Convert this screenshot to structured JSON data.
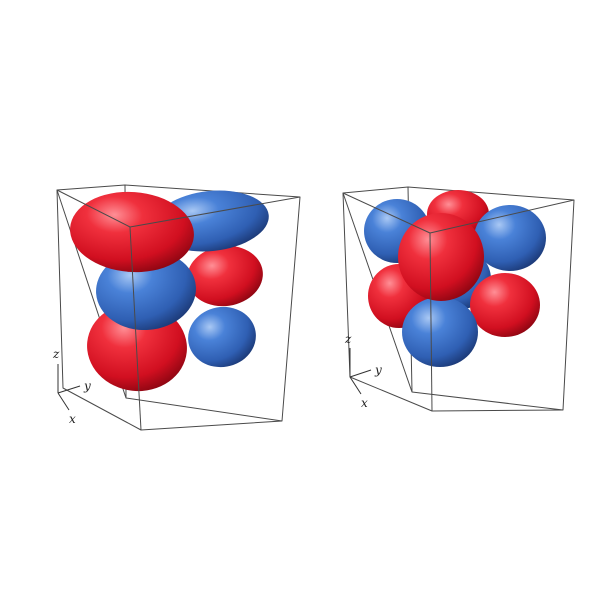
{
  "figure": {
    "panels": [
      {
        "id": "left",
        "axes": {
          "z": "z",
          "y": "y",
          "x": "x"
        },
        "lobes": [
          {
            "phase": "positive"
          },
          {
            "phase": "negative"
          },
          {
            "phase": "negative"
          },
          {
            "phase": "positive"
          },
          {
            "phase": "negative"
          },
          {
            "phase": "positive"
          }
        ]
      },
      {
        "id": "right",
        "axes": {
          "z": "z",
          "y": "y",
          "x": "x"
        },
        "lobes": [
          {
            "phase": "negative"
          },
          {
            "phase": "positive"
          },
          {
            "phase": "negative"
          },
          {
            "phase": "positive"
          },
          {
            "phase": "positive"
          },
          {
            "phase": "negative"
          },
          {
            "phase": "negative"
          },
          {
            "phase": "positive"
          }
        ]
      }
    ],
    "colors": {
      "positive": "#e01a2b",
      "negative": "#3a6fc4",
      "edge": "#4a4a4a"
    }
  }
}
